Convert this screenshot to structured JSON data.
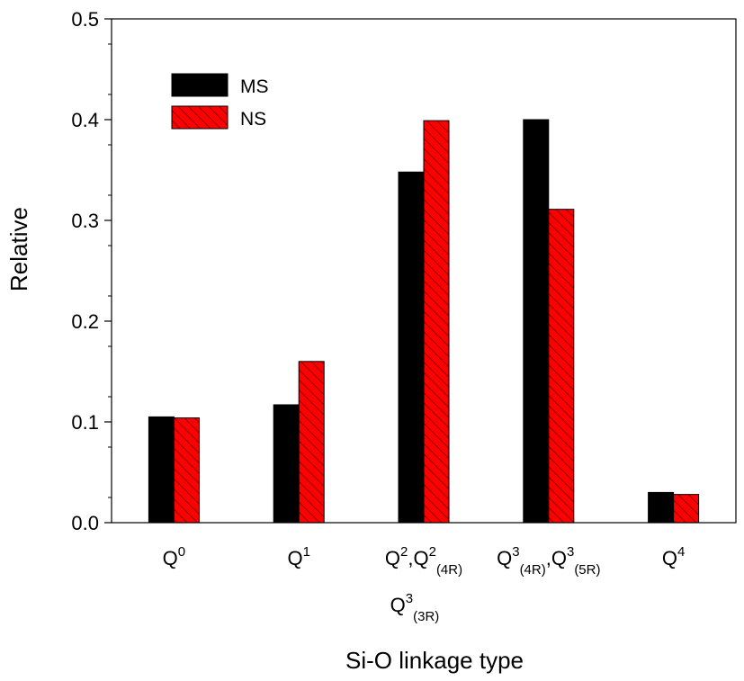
{
  "chart_data": {
    "type": "bar",
    "xlabel": "Si-O linkage type",
    "ylabel": "Relative",
    "ylim": [
      0,
      0.5
    ],
    "yticks": [
      "0.0",
      "0.1",
      "0.2",
      "0.3",
      "0.4",
      "0.5"
    ],
    "grid": false,
    "legend_position": "top-left",
    "categories": [
      "Q0",
      "Q1",
      "Q2,Q2(4R) Q3(3R)",
      "Q3(4R),Q3(5R)",
      "Q4"
    ],
    "category_labels": [
      [
        {
          "t": "Q",
          "sup": "0"
        }
      ],
      [
        {
          "t": "Q",
          "sup": "1"
        }
      ],
      [
        {
          "t": "Q",
          "sup": "2"
        },
        {
          "t": ",Q",
          "sup": "2"
        },
        {
          "sub": "(4R)"
        }
      ],
      [
        {
          "t": "Q",
          "sup": "3"
        },
        {
          "sub": "(4R)"
        },
        {
          "t": ",Q",
          "sup": "3"
        },
        {
          "sub": "(5R)"
        }
      ],
      [
        {
          "t": "Q",
          "sup": "4"
        }
      ]
    ],
    "category_second_line": {
      "index": 2,
      "parts": [
        {
          "t": "Q",
          "sup": "3"
        },
        {
          "sub": "(3R)"
        }
      ]
    },
    "series": [
      {
        "name": "MS",
        "values": [
          0.105,
          0.117,
          0.348,
          0.4,
          0.03
        ],
        "color": "#000000",
        "pattern": "solid"
      },
      {
        "name": "NS",
        "values": [
          0.104,
          0.16,
          0.399,
          0.311,
          0.028
        ],
        "color": "#ff0000",
        "pattern": "hatched"
      }
    ]
  }
}
